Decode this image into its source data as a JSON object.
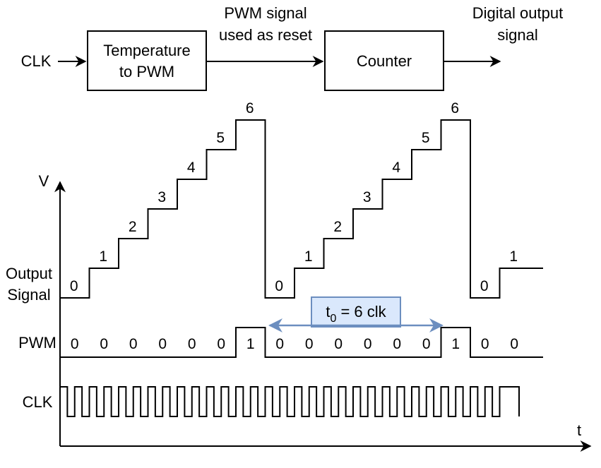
{
  "block_diagram": {
    "clk_input_label": "CLK",
    "block1": {
      "line1": "Temperature",
      "line2": "to PWM"
    },
    "link_label": {
      "line1": "PWM signal",
      "line2": "used as reset"
    },
    "block2": {
      "label": "Counter"
    },
    "output_label": {
      "line1": "Digital output",
      "line2": "signal"
    }
  },
  "timing": {
    "axis_v": "V",
    "axis_t": "t",
    "output_label": {
      "line1": "Output",
      "line2": "Signal"
    },
    "pwm_label": "PWM",
    "clk_label": "CLK",
    "output_values": [
      "0",
      "1",
      "2",
      "3",
      "4",
      "5",
      "6",
      "0",
      "1",
      "2",
      "3",
      "4",
      "5",
      "6",
      "0",
      "1"
    ],
    "pwm_values": [
      "0",
      "0",
      "0",
      "0",
      "0",
      "0",
      "1",
      "0",
      "0",
      "0",
      "0",
      "0",
      "0",
      "1",
      "0",
      "0"
    ],
    "period_box": {
      "prefix": "t",
      "subscript": "0",
      "suffix": " = 6 clk"
    },
    "colors": {
      "period_fill": "#dae8fc",
      "period_stroke": "#6c8ebf",
      "line": "#000000"
    }
  }
}
